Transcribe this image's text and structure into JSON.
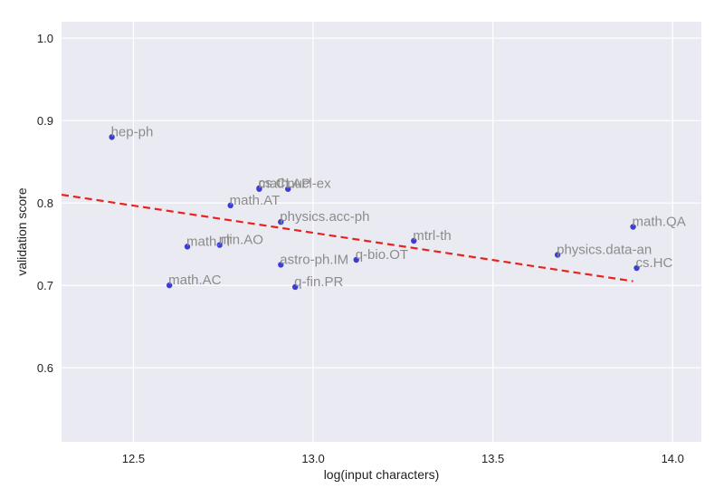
{
  "chart_data": {
    "type": "scatter",
    "title": "",
    "xlabel": "log(input characters)",
    "ylabel": "validation score",
    "xlim": [
      12.3,
      14.08
    ],
    "ylim": [
      0.51,
      1.02
    ],
    "xticks": [
      12.5,
      13.0,
      13.5,
      14.0
    ],
    "xtick_labels": [
      "12.5",
      "13.0",
      "13.5",
      "14.0"
    ],
    "yticks": [
      0.6,
      0.7,
      0.8,
      0.9,
      1.0
    ],
    "ytick_labels": [
      "0.6",
      "0.7",
      "0.8",
      "0.9",
      "1.0"
    ],
    "grid": true,
    "background": "#eaeaf2",
    "point_color": "#3b3bd6",
    "label_color": "#8c8c8c",
    "trend_color": "#e8231d",
    "points": [
      {
        "label": "hep-ph",
        "x": 12.44,
        "y": 0.88
      },
      {
        "label": "math.AC",
        "x": 12.6,
        "y": 0.7
      },
      {
        "label": "math.IT",
        "x": 12.65,
        "y": 0.747
      },
      {
        "label": "nlin.AO",
        "x": 12.74,
        "y": 0.749
      },
      {
        "label": "math.AT",
        "x": 12.77,
        "y": 0.797
      },
      {
        "label": "cs.CL",
        "x": 12.85,
        "y": 0.818
      },
      {
        "label": "math.AP",
        "x": 12.85,
        "y": 0.817
      },
      {
        "label": "nucl-ex",
        "x": 12.93,
        "y": 0.817
      },
      {
        "label": "physics.acc-ph",
        "x": 12.91,
        "y": 0.777
      },
      {
        "label": "astro-ph.IM",
        "x": 12.91,
        "y": 0.725
      },
      {
        "label": "q-fin.PR",
        "x": 12.95,
        "y": 0.698
      },
      {
        "label": "q-bio.OT",
        "x": 13.12,
        "y": 0.731
      },
      {
        "label": "mtrl-th",
        "x": 13.28,
        "y": 0.754
      },
      {
        "label": "physics.data-an",
        "x": 13.68,
        "y": 0.737
      },
      {
        "label": "math.QA",
        "x": 13.89,
        "y": 0.771
      },
      {
        "label": "cs.HC",
        "x": 13.9,
        "y": 0.721
      }
    ],
    "trendline": {
      "x": [
        12.3,
        13.89
      ],
      "y": [
        0.81,
        0.705
      ]
    }
  }
}
